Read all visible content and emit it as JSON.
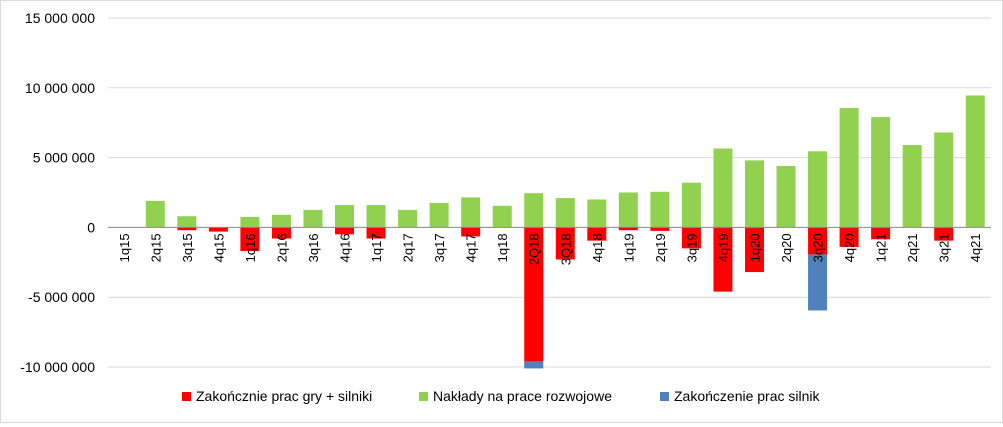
{
  "chart_data": {
    "type": "bar",
    "stacked": true,
    "title": "",
    "xlabel": "",
    "ylabel": "",
    "ylim": [
      -10000000,
      15000000
    ],
    "yticks": [
      -10000000,
      -5000000,
      0,
      5000000,
      10000000,
      15000000
    ],
    "ytick_labels": [
      "-10 000 000",
      "-5 000 000",
      "0",
      "5 000 000",
      "10 000 000",
      "15 000 000"
    ],
    "grid": "horizontal",
    "legend_position": "bottom",
    "categories": [
      "1q15",
      "2q15",
      "3q15",
      "4q15",
      "1q16",
      "2q16",
      "3q16",
      "4q16",
      "1q17",
      "2q17",
      "3q17",
      "4q17",
      "1q18",
      "2Q18",
      "3Q18",
      "4q18",
      "1q19",
      "2q19",
      "3q19",
      "4q19",
      "1q20",
      "2q20",
      "3q20",
      "4q20",
      "1q21",
      "2q21",
      "3q21",
      "4q21"
    ],
    "series": [
      {
        "name": "Zakończnie prac gry + silniki",
        "color": "#ff0000",
        "values": [
          0,
          0,
          -200000,
          -300000,
          -1700000,
          -800000,
          0,
          -500000,
          -800000,
          0,
          0,
          -650000,
          0,
          -9600000,
          -2300000,
          -950000,
          -200000,
          -250000,
          -1500000,
          -4600000,
          -3200000,
          0,
          -1950000,
          -1400000,
          -850000,
          0,
          -950000,
          0
        ]
      },
      {
        "name": "Nakłady na prace rozwojowe",
        "color": "#92d050",
        "values": [
          0,
          1900000,
          800000,
          0,
          750000,
          900000,
          1250000,
          1600000,
          1600000,
          1250000,
          1750000,
          2150000,
          1550000,
          2450000,
          2100000,
          2000000,
          2500000,
          2550000,
          3200000,
          5650000,
          4800000,
          4400000,
          5450000,
          8550000,
          7900000,
          5900000,
          6800000,
          9450000
        ]
      },
      {
        "name": "Zakończenie prac silnik",
        "color": "#4f81bd",
        "values": [
          0,
          0,
          0,
          0,
          0,
          0,
          0,
          0,
          0,
          0,
          0,
          0,
          0,
          -500000,
          0,
          0,
          0,
          0,
          0,
          0,
          0,
          0,
          -4000000,
          0,
          0,
          0,
          0,
          0
        ]
      }
    ]
  }
}
